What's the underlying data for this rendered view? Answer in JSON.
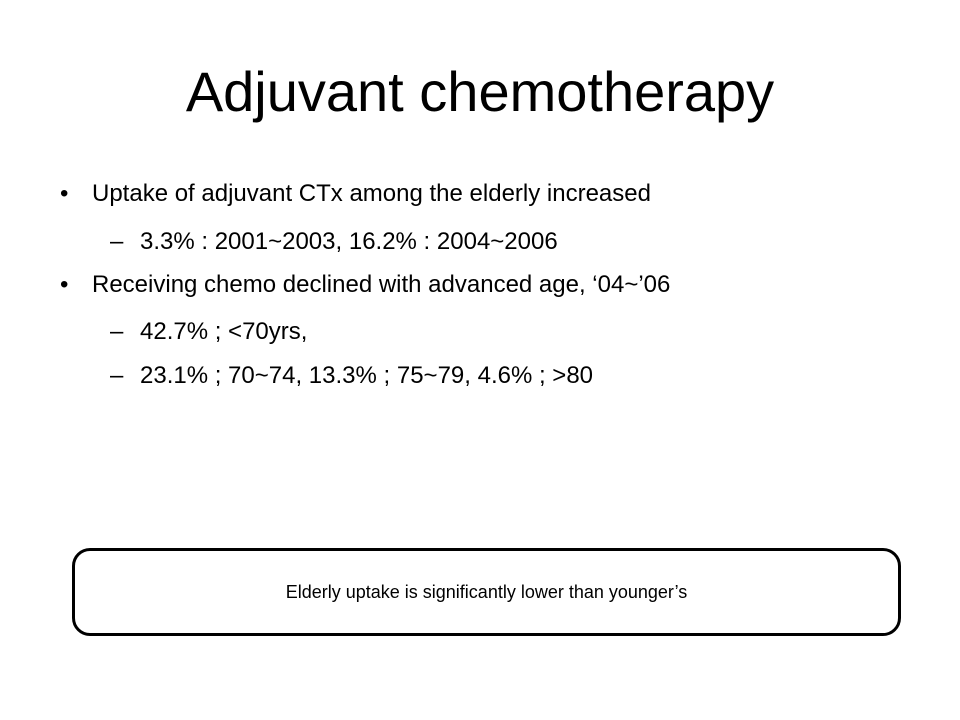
{
  "slide": {
    "title": "Adjuvant chemotherapy",
    "bullets": [
      {
        "marker": "•",
        "text": "Uptake of adjuvant CTx among the elderly increased",
        "subitems": [
          {
            "marker": "–",
            "text": "3.3% : 2001~2003, 16.2% : 2004~2006"
          }
        ]
      },
      {
        "marker": "•",
        "text": "Receiving chemo declined with advanced age, ‘04~’06",
        "subitems": [
          {
            "marker": "–",
            "text": "42.7% ; <70yrs,"
          },
          {
            "marker": "–",
            "text": "23.1% ; 70~74, 13.3% ; 75~79, 4.6% ; >80"
          }
        ]
      }
    ],
    "callout": "Elderly uptake is significantly lower than younger’s"
  }
}
